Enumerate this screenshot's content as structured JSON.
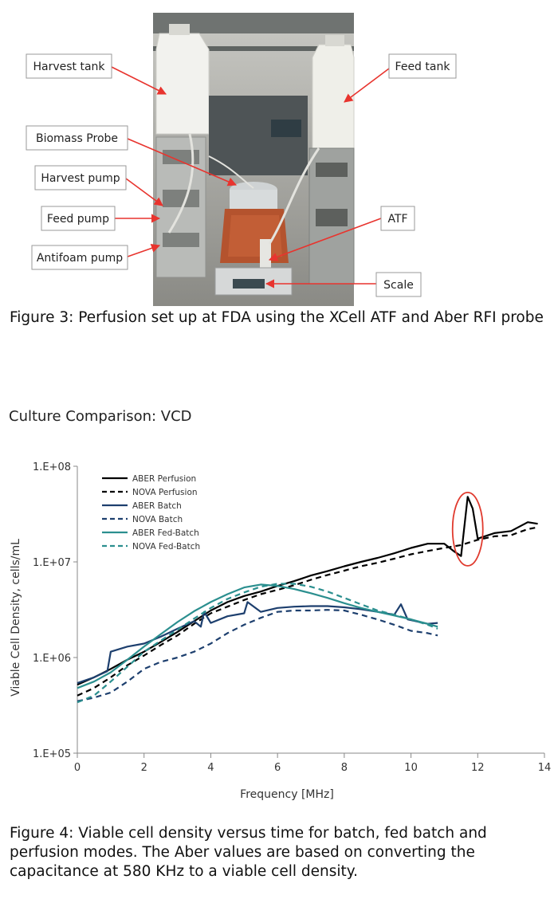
{
  "figure3": {
    "caption": "Figure 3: Perfusion set up at FDA using the XCell ATF and Aber RFI probe",
    "callouts": [
      {
        "id": "harvest-tank",
        "label": "Harvest tank"
      },
      {
        "id": "feed-tank",
        "label": "Feed tank"
      },
      {
        "id": "biomass-probe",
        "label": "Biomass Probe"
      },
      {
        "id": "harvest-pump",
        "label": "Harvest pump"
      },
      {
        "id": "feed-pump",
        "label": "Feed pump"
      },
      {
        "id": "atf",
        "label": "ATF"
      },
      {
        "id": "antifoam-pump",
        "label": "Antifoam pump"
      },
      {
        "id": "scale",
        "label": "Scale"
      }
    ],
    "callout_color": "#e8342e"
  },
  "figure4": {
    "caption": "Figure 4: Viable cell density versus time for batch, fed batch and perfusion modes. The Aber values are based on converting the capacitance at 580 KHz to a viable cell density."
  },
  "chart_data": {
    "type": "line",
    "title": "Culture Comparison: VCD",
    "xlabel": "Frequency [MHz]",
    "ylabel": "Viable Cell Density, cells/mL",
    "xlim": [
      0,
      14
    ],
    "ylim": [
      100000,
      100000000
    ],
    "yscale": "log",
    "xticks": [
      0,
      2,
      4,
      6,
      8,
      10,
      12,
      14
    ],
    "ytick_labels": [
      "1.E+05",
      "1.E+06",
      "1.E+07",
      "1.E+08"
    ],
    "yticks": [
      100000,
      1000000,
      10000000,
      100000000
    ],
    "grid": false,
    "legend_position": "top-left",
    "annotation": "red ellipse around the ABER Perfusion spike near x = 11.7",
    "series": [
      {
        "name": "ABER Perfusion",
        "color": "#000000",
        "dash": "solid",
        "x": [
          0,
          0.5,
          1,
          1.5,
          2,
          2.5,
          3,
          3.5,
          4,
          4.5,
          5,
          5.5,
          6,
          6.5,
          7,
          7.5,
          8,
          8.5,
          9,
          9.5,
          10,
          10.5,
          11,
          11.3,
          11.5,
          11.7,
          11.85,
          12,
          12.5,
          13,
          13.5,
          13.8
        ],
        "y": [
          520000,
          620000,
          760000,
          950000,
          1150000,
          1450000,
          1850000,
          2400000,
          3100000,
          3800000,
          4400000,
          4900000,
          5600000,
          6300000,
          7200000,
          8000000,
          9000000,
          10000000,
          11000000,
          12300000,
          14000000,
          15500000,
          15500000,
          12800000,
          11500000,
          48000000,
          36000000,
          17500000,
          20000000,
          21000000,
          26000000,
          25000000
        ]
      },
      {
        "name": "NOVA Perfusion",
        "color": "#000000",
        "dash": "dashed",
        "x": [
          0,
          0.5,
          1,
          1.5,
          2,
          2.5,
          3,
          3.5,
          4,
          4.5,
          5,
          5.5,
          6,
          6.5,
          7,
          7.5,
          8,
          8.5,
          9,
          9.5,
          10,
          10.5,
          11,
          11.5,
          12,
          12.5,
          13,
          13.5,
          13.8
        ],
        "y": [
          400000,
          480000,
          620000,
          830000,
          1050000,
          1350000,
          1700000,
          2250000,
          2900000,
          3400000,
          4000000,
          4600000,
          5100000,
          5700000,
          6500000,
          7300000,
          8100000,
          9000000,
          9800000,
          10800000,
          12000000,
          13000000,
          14000000,
          15000000,
          17000000,
          18500000,
          19000000,
          22000000,
          23000000
        ]
      },
      {
        "name": "ABER Batch",
        "color": "#1d3f6e",
        "dash": "solid",
        "x": [
          0,
          0.5,
          0.9,
          1,
          1.5,
          2,
          2.5,
          3,
          3.5,
          3.7,
          3.8,
          4,
          4.5,
          5,
          5.1,
          5.5,
          6,
          6.5,
          7,
          7.5,
          8,
          8.5,
          9,
          9.5,
          9.7,
          9.9,
          10.5,
          10.8
        ],
        "y": [
          540000,
          620000,
          720000,
          1150000,
          1300000,
          1400000,
          1650000,
          2000000,
          2400000,
          2100000,
          3000000,
          2300000,
          2700000,
          2900000,
          3800000,
          3000000,
          3300000,
          3400000,
          3450000,
          3450000,
          3350000,
          3200000,
          3000000,
          2800000,
          3600000,
          2500000,
          2250000,
          2300000
        ]
      },
      {
        "name": "NOVA Batch",
        "color": "#1d3f6e",
        "dash": "dashed",
        "x": [
          0,
          0.5,
          1,
          1.5,
          2,
          2.5,
          3,
          3.5,
          4,
          4.5,
          5,
          5.5,
          6,
          6.5,
          7,
          7.5,
          8,
          8.5,
          9,
          9.5,
          10,
          10.5,
          10.8
        ],
        "y": [
          350000,
          380000,
          430000,
          560000,
          760000,
          900000,
          1000000,
          1150000,
          1400000,
          1800000,
          2200000,
          2600000,
          3000000,
          3100000,
          3100000,
          3150000,
          3100000,
          2800000,
          2500000,
          2200000,
          1900000,
          1800000,
          1700000
        ]
      },
      {
        "name": "ABER Fed-Batch",
        "color": "#2b8f8f",
        "dash": "solid",
        "x": [
          0,
          0.5,
          1,
          1.5,
          2,
          2.5,
          3,
          3.5,
          4,
          4.5,
          5,
          5.5,
          6,
          6.5,
          7,
          7.5,
          8,
          8.5,
          9,
          9.5,
          10,
          10.5,
          10.8
        ],
        "y": [
          480000,
          560000,
          700000,
          950000,
          1300000,
          1750000,
          2350000,
          3050000,
          3800000,
          4600000,
          5400000,
          5800000,
          5600000,
          5200000,
          4700000,
          4200000,
          3700000,
          3300000,
          3000000,
          2750000,
          2500000,
          2250000,
          2100000
        ]
      },
      {
        "name": "NOVA Fed-Batch",
        "color": "#2b8f8f",
        "dash": "dashed",
        "x": [
          0,
          0.5,
          1,
          1.5,
          2,
          2.5,
          3,
          3.5,
          4,
          4.5,
          5,
          5.5,
          6,
          6.5,
          7,
          7.5,
          8,
          8.5,
          9,
          9.5,
          10,
          10.5,
          10.8
        ],
        "y": [
          340000,
          400000,
          560000,
          800000,
          1150000,
          1500000,
          1950000,
          2550000,
          3300000,
          4100000,
          4800000,
          5500000,
          5900000,
          5900000,
          5500000,
          4900000,
          4200000,
          3600000,
          3100000,
          2800000,
          2500000,
          2200000,
          2000000
        ]
      }
    ]
  }
}
